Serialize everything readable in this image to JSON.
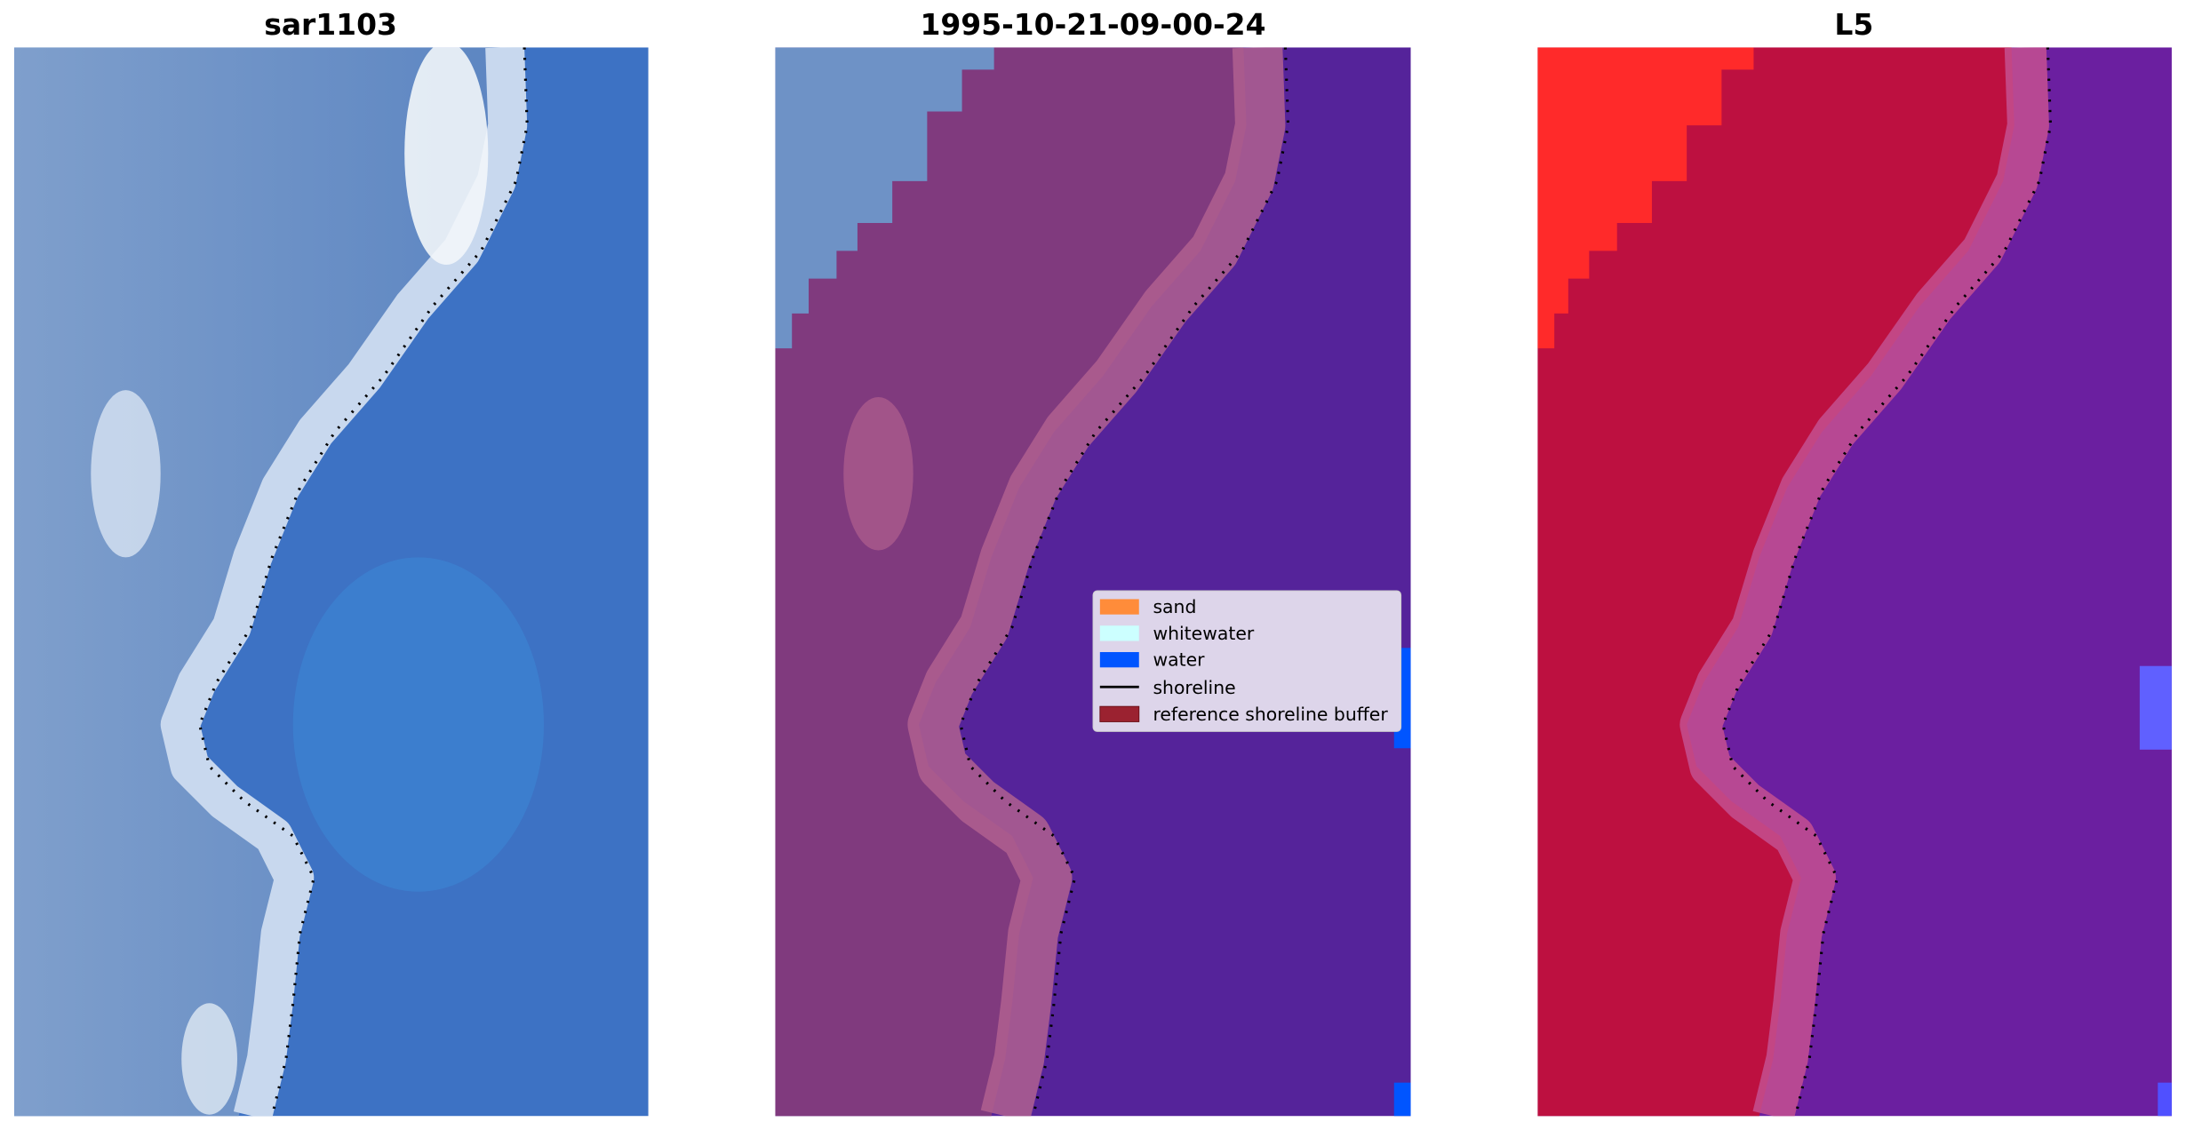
{
  "figure": {
    "panels": [
      {
        "title": "sar1103"
      },
      {
        "title": "1995-10-21-09-00-24"
      },
      {
        "title": "L5"
      }
    ],
    "legend": {
      "placement": "center-right of middle panel",
      "items": [
        {
          "label": "sand",
          "color": "#ff8c3a",
          "kind": "patch"
        },
        {
          "label": "whitewater",
          "color": "#ccffff",
          "kind": "patch"
        },
        {
          "label": "water",
          "color": "#0055ff",
          "kind": "patch"
        },
        {
          "label": "shoreline",
          "color": "#000000",
          "kind": "line"
        },
        {
          "label": "reference shoreline buffer",
          "color": "#9b2230",
          "kind": "patch"
        }
      ]
    },
    "colors": {
      "rgb_water": "#3f70c0",
      "rgb_land": "#7b9ccb",
      "class_land": "#7e3a7c",
      "class_water": "#55239a",
      "index_land": "#bb1040",
      "index_water": "#6a1fa0"
    }
  }
}
